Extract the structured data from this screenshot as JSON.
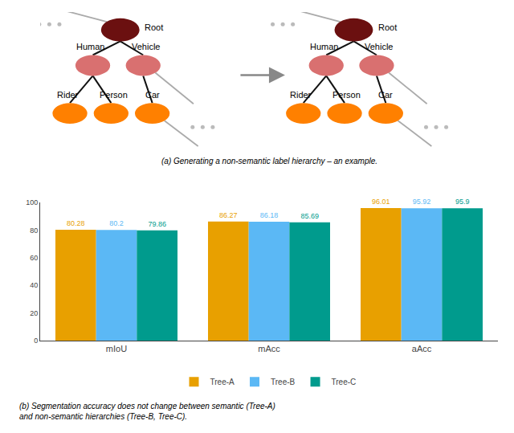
{
  "chart_data": {
    "type": "bar",
    "categories": [
      "mIoU",
      "mAcc",
      "aAcc"
    ],
    "series": [
      {
        "name": "Tree-A",
        "color": "#E8A000",
        "values": [
          80.28,
          86.27,
          96.01
        ]
      },
      {
        "name": "Tree-B",
        "color": "#5BB8F5",
        "values": [
          80.2,
          86.18,
          95.92
        ]
      },
      {
        "name": "Tree-C",
        "color": "#009B8D",
        "values": [
          79.86,
          85.69,
          95.9
        ]
      }
    ],
    "ylim": [
      0,
      100
    ],
    "yticks": [
      0,
      20,
      40,
      60,
      80,
      100
    ],
    "grid": false,
    "data_labels": true,
    "legend": "bottom",
    "annotations": [
      {
        "text": "(a) Generating a non-semantic label hierarchy – an example."
      },
      {
        "text": "(b) Segmentation accuracy does not change between semantic (Tree-A)\nand non-semantic hierarchies (Tree-B, Tree-C)."
      },
      {
        "text": "Root",
        "color": "#6B1010"
      },
      {
        "text": "Human",
        "color": "#D97070"
      },
      {
        "text": "Vehicle",
        "color": "#D97070"
      },
      {
        "text": "Rider",
        "color": "#FF8000"
      },
      {
        "text": "Person",
        "color": "#FF8000"
      },
      {
        "text": "Car",
        "color": "#FF8000"
      }
    ]
  }
}
